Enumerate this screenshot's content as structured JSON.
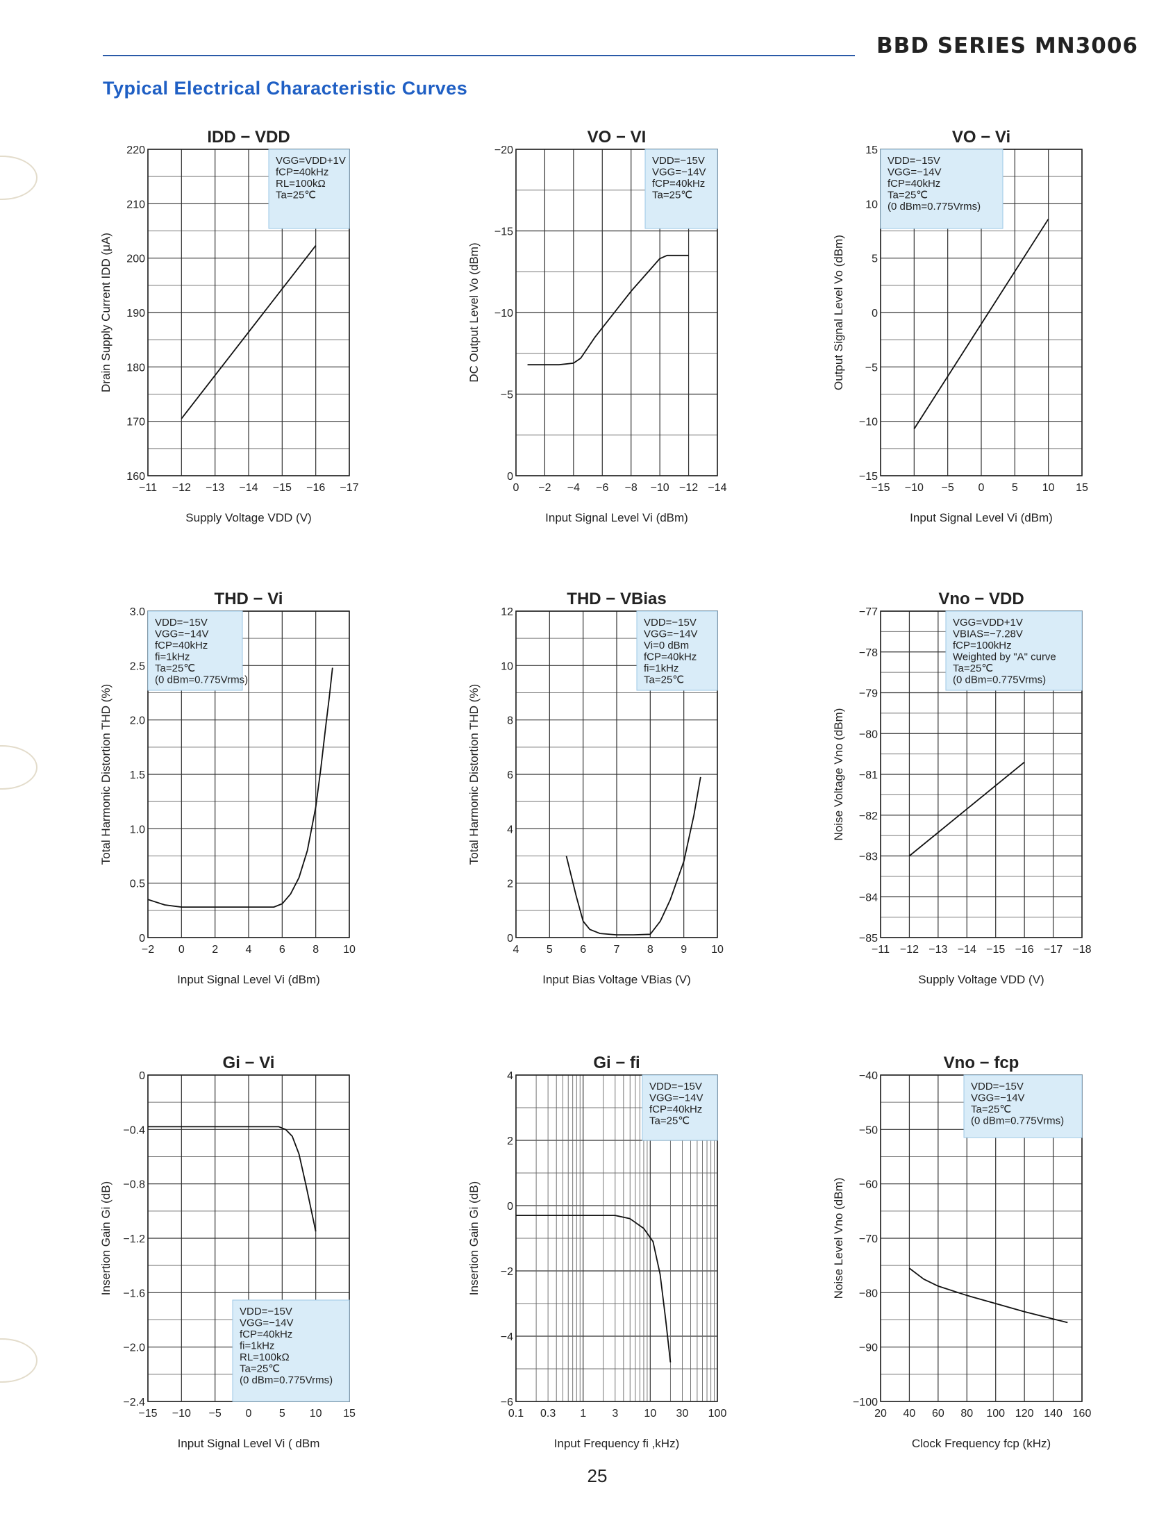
{
  "header": {
    "series": "BBD SERIES MN3006",
    "heading": "Typical Electrical Characteristic Curves"
  },
  "page_number": "25",
  "chart_data": [
    {
      "id": "c1",
      "type": "line",
      "title": "IDD − VDD",
      "xlabel": "Supply Voltage   VDD  (V)",
      "ylabel": "Drain Supply Current  IDD  (μA)",
      "xlim": [
        -11,
        -17
      ],
      "ylim": [
        160,
        220
      ],
      "x_scale": "linear",
      "x_ticks": [
        -11,
        -12,
        -13,
        -14,
        -15,
        -16,
        -17
      ],
      "y_ticks": [
        160,
        170,
        180,
        190,
        200,
        210,
        220
      ],
      "x_tick_labels": [
        "−11",
        "−12",
        "−13",
        "−14",
        "−15",
        "−16",
        "−17"
      ],
      "y_tick_labels": [
        "160",
        "170",
        "180",
        "190",
        "200",
        "210",
        "220"
      ],
      "legend_pos": "top-right",
      "conditions": [
        "VGG=VDD+1V",
        "fCP=40kHz",
        "RL=100kΩ",
        "Ta=25℃"
      ],
      "series": [
        {
          "name": "IDD",
          "x": [
            -12,
            -16
          ],
          "y": [
            170.5,
            202.3
          ]
        }
      ]
    },
    {
      "id": "c2",
      "type": "line",
      "title": "VO − VI",
      "xlabel": "Input Signal Level   Vi  (dBm)",
      "ylabel": "DC Output Level  Vo  (dBm)",
      "xlim": [
        0,
        -14
      ],
      "ylim": [
        0,
        -20
      ],
      "x_scale": "linear",
      "x_ticks": [
        0,
        -2,
        -4,
        -6,
        -8,
        -10,
        -12,
        -14
      ],
      "y_ticks": [
        0,
        -5,
        -10,
        -15,
        -20
      ],
      "x_tick_labels": [
        "0",
        "−2",
        "−4",
        "−6",
        "−8",
        "−10",
        "−12",
        "−14"
      ],
      "y_tick_labels": [
        "0",
        "−5",
        "−10",
        "−15",
        "−20"
      ],
      "legend_pos": "top-right",
      "conditions": [
        "VDD=−15V",
        "VGG=−14V",
        "fCP=40kHz",
        "Ta=25℃"
      ],
      "series": [
        {
          "name": "Vo",
          "x": [
            -0.8,
            -3,
            -4,
            -4.5,
            -5.5,
            -8,
            -10,
            -10.5,
            -12
          ],
          "y": [
            -6.8,
            -6.8,
            -6.9,
            -7.2,
            -8.5,
            -11.3,
            -13.3,
            -13.5,
            -13.5
          ]
        }
      ]
    },
    {
      "id": "c3",
      "type": "line",
      "title": "VO − Vi",
      "xlabel": "Input Signal Level   Vi  (dBm)",
      "ylabel": "Output Signal Level   Vo  (dBm)",
      "xlim": [
        -15,
        15
      ],
      "ylim": [
        -15,
        15
      ],
      "x_scale": "linear",
      "x_ticks": [
        -15,
        -10,
        -5,
        0,
        5,
        10,
        15
      ],
      "y_ticks": [
        -15,
        -10,
        -5,
        0,
        5,
        10,
        15
      ],
      "x_tick_labels": [
        "−15",
        "−10",
        "−5",
        "0",
        "5",
        "10",
        "15"
      ],
      "y_tick_labels": [
        "−15",
        "−10",
        "−5",
        "0",
        "5",
        "10",
        "15"
      ],
      "legend_pos": "top-left",
      "conditions": [
        "VDD=−15V",
        "VGG=−14V",
        "fCP=40kHz",
        "Ta=25℃",
        "(0 dBm=0.775Vrms)"
      ],
      "series": [
        {
          "name": "Vo",
          "x": [
            -10,
            10
          ],
          "y": [
            -10.7,
            8.6
          ]
        }
      ]
    },
    {
      "id": "c4",
      "type": "line",
      "title": "THD − Vi",
      "xlabel": "Input Signal Level Vi (dBm)",
      "ylabel": "Total Harmonic Distortion   THD  (%)",
      "xlim": [
        -2,
        10
      ],
      "ylim": [
        0,
        3.0
      ],
      "x_scale": "linear",
      "x_ticks": [
        -2,
        0,
        2,
        4,
        6,
        8,
        10
      ],
      "y_ticks": [
        0,
        0.5,
        1.0,
        1.5,
        2.0,
        2.5,
        3.0
      ],
      "x_tick_labels": [
        "−2",
        "0",
        "2",
        "4",
        "6",
        "8",
        "10"
      ],
      "y_tick_labels": [
        "0",
        "0.5",
        "1.0",
        "1.5",
        "2.0",
        "2.5",
        "3.0"
      ],
      "legend_pos": "top-left",
      "conditions": [
        "VDD=−15V",
        "VGG=−14V",
        "fCP=40kHz",
        "fi=1kHz",
        "Ta=25℃",
        "(0 dBm=0.775Vrms)"
      ],
      "series": [
        {
          "name": "THD",
          "x": [
            -2,
            -1,
            0,
            2,
            4,
            5.5,
            6,
            6.5,
            7,
            7.5,
            8,
            8.3,
            8.6,
            8.8,
            9
          ],
          "y": [
            0.35,
            0.3,
            0.28,
            0.28,
            0.28,
            0.28,
            0.31,
            0.4,
            0.55,
            0.8,
            1.2,
            1.55,
            1.95,
            2.2,
            2.48
          ]
        }
      ]
    },
    {
      "id": "c5",
      "type": "line",
      "title": "THD − VBias",
      "xlabel": "Input Bias Voltage   VBias  (V)",
      "ylabel": "Total Harmonic Distortion   THD  (%)",
      "xlim": [
        4,
        10
      ],
      "ylim": [
        0,
        12
      ],
      "x_scale": "linear",
      "x_ticks": [
        4,
        5,
        6,
        7,
        8,
        9,
        10
      ],
      "y_ticks": [
        0,
        2,
        4,
        6,
        8,
        10,
        12
      ],
      "x_tick_labels": [
        "4",
        "5",
        "6",
        "7",
        "8",
        "9",
        "10"
      ],
      "y_tick_labels": [
        "0",
        "2",
        "4",
        "6",
        "8",
        "10",
        "12"
      ],
      "legend_pos": "top-right",
      "conditions": [
        "VDD=−15V",
        "VGG=−14V",
        "Vi=0 dBm",
        "fCP=40kHz",
        "fi=1kHz",
        "Ta=25℃"
      ],
      "series": [
        {
          "name": "THD",
          "x": [
            5.5,
            5.8,
            6.0,
            6.2,
            6.5,
            7,
            7.5,
            8,
            8.3,
            8.6,
            9,
            9.3,
            9.5
          ],
          "y": [
            3.0,
            1.5,
            0.6,
            0.3,
            0.15,
            0.1,
            0.1,
            0.12,
            0.6,
            1.4,
            2.8,
            4.5,
            5.9
          ]
        }
      ]
    },
    {
      "id": "c6",
      "type": "line",
      "title": "Vno − VDD",
      "xlabel": "Supply Voltage   VDD  (V)",
      "ylabel": "Noise Voltage   Vno  (dBm)",
      "xlim": [
        -11,
        -18
      ],
      "ylim": [
        -85,
        -77
      ],
      "x_scale": "linear",
      "x_ticks": [
        -11,
        -12,
        -13,
        -14,
        -15,
        -16,
        -17,
        -18
      ],
      "y_ticks": [
        -85,
        -84,
        -83,
        -82,
        -81,
        -80,
        -79,
        -78,
        -77
      ],
      "x_tick_labels": [
        "−11",
        "−12",
        "−13",
        "−14",
        "−15",
        "−16",
        "−17",
        "−18"
      ],
      "y_tick_labels": [
        "−85",
        "−84",
        "−83",
        "−82",
        "−81",
        "−80",
        "−79",
        "−78",
        "−77"
      ],
      "legend_pos": "top-right",
      "conditions": [
        "VGG=VDD+1V",
        "VBIAS=−7.28V",
        "fCP=100kHz",
        "Weighted by \"A\" curve",
        "Ta=25℃",
        "(0 dBm=0.775Vrms)"
      ],
      "series": [
        {
          "name": "Vno",
          "x": [
            -12,
            -16
          ],
          "y": [
            -83.0,
            -80.7
          ]
        }
      ]
    },
    {
      "id": "c7",
      "type": "line",
      "title": "Gi − Vi",
      "xlabel": "Input Signal Level   Vi  ( dBm",
      "ylabel": "Insertion Gain  Gi  (dB)",
      "xlim": [
        -15,
        15
      ],
      "ylim": [
        -2.4,
        0
      ],
      "x_scale": "linear",
      "x_ticks": [
        -15,
        -10,
        -5,
        0,
        5,
        10,
        15
      ],
      "y_ticks": [
        -2.4,
        -2.0,
        -1.6,
        -1.2,
        -0.8,
        -0.4,
        0
      ],
      "x_tick_labels": [
        "−15",
        "−10",
        "−5",
        "0",
        "5",
        "10",
        "15"
      ],
      "y_tick_labels": [
        "−2.4",
        "−2.0",
        "−1.6",
        "−1.2",
        "−0.8",
        "−0.4",
        "0"
      ],
      "legend_pos": "bottom-right",
      "conditions": [
        "VDD=−15V",
        "VGG=−14V",
        "fCP=40kHz",
        "fi=1kHz",
        "RL=100kΩ",
        "Ta=25℃",
        "(0 dBm=0.775Vrms)"
      ],
      "series": [
        {
          "name": "Gi",
          "x": [
            -15,
            0,
            3,
            4.5,
            5.5,
            6.5,
            7.5,
            8.5,
            10
          ],
          "y": [
            -0.38,
            -0.38,
            -0.38,
            -0.38,
            -0.4,
            -0.45,
            -0.58,
            -0.8,
            -1.15
          ]
        }
      ]
    },
    {
      "id": "c8",
      "type": "line",
      "title": "Gi − fi",
      "xlabel": "Input Frequency   fi  ,kHz)",
      "ylabel": "Insertion Gain  Gi  (dB)",
      "xlim": [
        0.1,
        100
      ],
      "ylim": [
        -6,
        4
      ],
      "x_scale": "log",
      "x_ticks": [
        0.1,
        0.3,
        1,
        3,
        10,
        30,
        100
      ],
      "y_ticks": [
        -6,
        -4,
        -2,
        0,
        2,
        4
      ],
      "x_tick_labels": [
        "0.1",
        "0.3",
        "1",
        "3",
        "10",
        "30",
        "100"
      ],
      "y_tick_labels": [
        "−6",
        "−4",
        "−2",
        "0",
        "2",
        "4"
      ],
      "legend_pos": "top-right",
      "conditions": [
        "VDD=−15V",
        "VGG=−14V",
        "fCP=40kHz",
        "Ta=25℃"
      ],
      "series": [
        {
          "name": "Gi",
          "x": [
            0.1,
            1,
            3,
            5,
            8,
            11,
            14,
            17,
            20
          ],
          "y": [
            -0.3,
            -0.3,
            -0.3,
            -0.4,
            -0.7,
            -1.1,
            -2.1,
            -3.5,
            -4.8
          ]
        }
      ]
    },
    {
      "id": "c9",
      "type": "line",
      "title": "Vno − fcp",
      "xlabel": "Clock Frequency   fcp  (kHz)",
      "ylabel": "Noise Level  Vno  (dBm)",
      "xlim": [
        20,
        160
      ],
      "ylim": [
        -100,
        -40
      ],
      "x_scale": "linear",
      "x_ticks": [
        20,
        40,
        60,
        80,
        100,
        120,
        140,
        160
      ],
      "y_ticks": [
        -100,
        -90,
        -80,
        -70,
        -60,
        -50,
        -40
      ],
      "x_tick_labels": [
        "20",
        "40",
        "60",
        "80",
        "100",
        "120",
        "140",
        "160"
      ],
      "y_tick_labels": [
        "−100",
        "−90",
        "−80",
        "−70",
        "−60",
        "−50",
        "−40"
      ],
      "legend_pos": "top-right",
      "conditions": [
        "VDD=−15V",
        "VGG=−14V",
        "Ta=25℃",
        "(0 dBm=0.775Vrms)"
      ],
      "series": [
        {
          "name": "Vno",
          "x": [
            40,
            50,
            60,
            80,
            100,
            120,
            150
          ],
          "y": [
            -75.5,
            -77.5,
            -78.8,
            -80.5,
            -82.0,
            -83.5,
            -85.5
          ]
        }
      ]
    }
  ]
}
